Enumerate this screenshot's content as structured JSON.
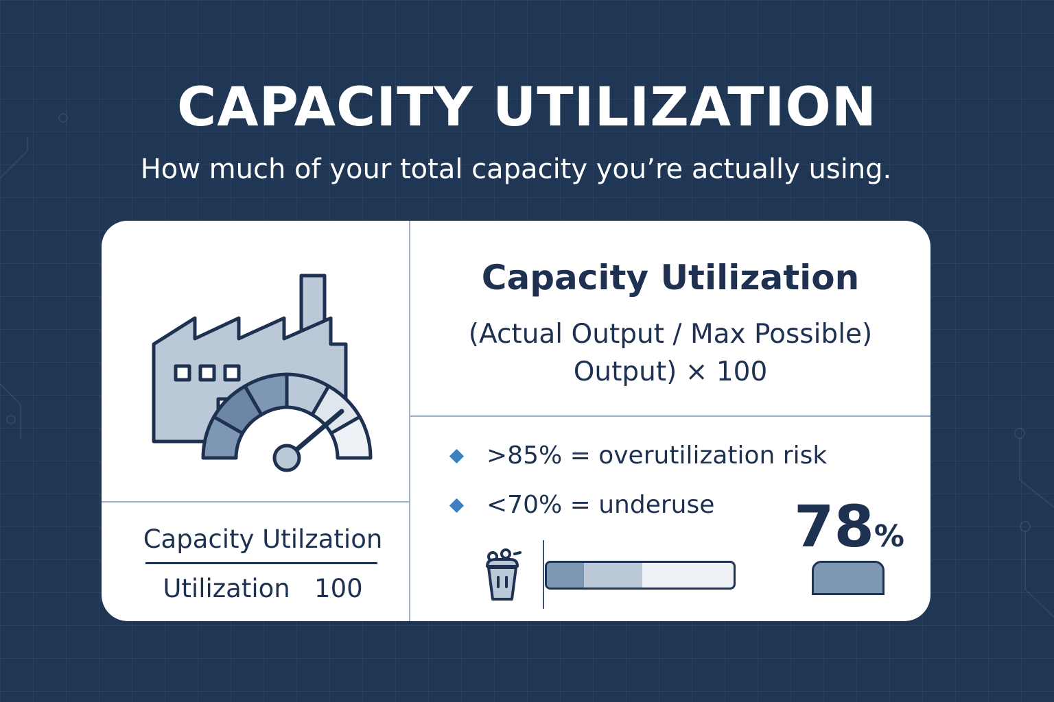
{
  "header": {
    "title": "CAPACITY UTILIZATION",
    "subtitle": "How much of your total capacity you’re actually using."
  },
  "card": {
    "illustration": {
      "icon": "factory-gauge-icon"
    },
    "left_label": {
      "numerator": "Capacity Utilzation",
      "denominator_word": "Utilization",
      "denominator_value": "100"
    },
    "formula": {
      "title": "Capacity Utilization",
      "line1": "(Actual Output / Max Possible)",
      "line2": "Output) × 100"
    },
    "thresholds": [
      {
        "text": ">85% = overutilization risk"
      },
      {
        "text": "<70% = underuse"
      }
    ],
    "utilization": {
      "value": "78",
      "unit": "%",
      "bar_segments": [
        0.2,
        0.51
      ],
      "icon": "bucket-icon"
    }
  },
  "colors": {
    "background": "#1f3655",
    "card": "#ffffff",
    "text": "#1e3151",
    "accent": "#3d7fc0",
    "fill_dark": "#7e97b5",
    "fill_light": "#bac8d8"
  }
}
